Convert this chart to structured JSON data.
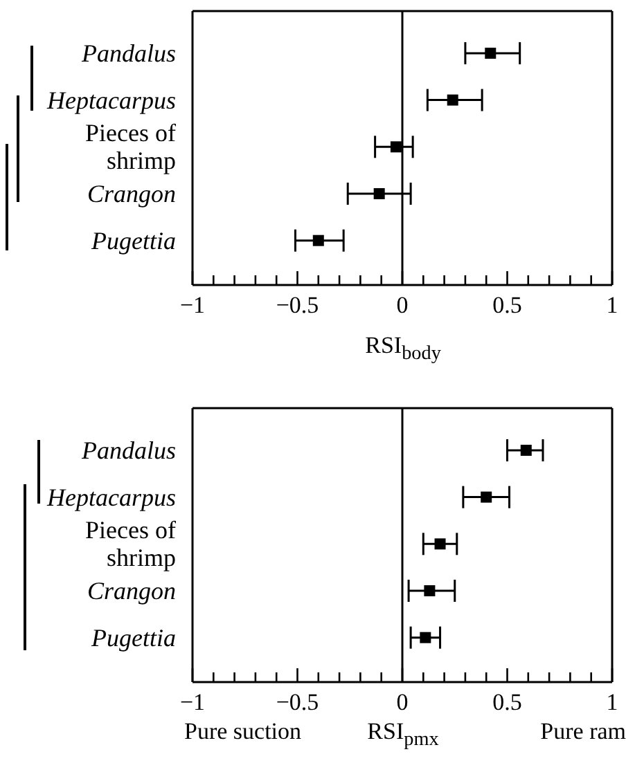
{
  "chart_data": [
    {
      "type": "scatter",
      "orientation": "horizontal",
      "categories": [
        "Pandalus",
        "Heptacarpus",
        "Pieces of shrimp",
        "Crangon",
        "Pugettia"
      ],
      "values": [
        0.42,
        0.24,
        -0.03,
        -0.11,
        -0.4
      ],
      "errors": [
        [
          0.3,
          0.56
        ],
        [
          0.12,
          0.38
        ],
        [
          -0.13,
          0.05
        ],
        [
          -0.26,
          0.04
        ],
        [
          -0.51,
          -0.28
        ]
      ],
      "color": "#000000",
      "marker": "square",
      "xlim": [
        -1,
        1
      ],
      "xticks": [
        {
          "value": -1,
          "label": "−1"
        },
        {
          "value": -0.9,
          "label": null
        },
        {
          "value": -0.8,
          "label": null
        },
        {
          "value": -0.7,
          "label": null
        },
        {
          "value": -0.6,
          "label": null
        },
        {
          "value": -0.5,
          "label": "−0.5"
        },
        {
          "value": -0.4,
          "label": null
        },
        {
          "value": -0.3,
          "label": null
        },
        {
          "value": -0.2,
          "label": null
        },
        {
          "value": -0.1,
          "label": null
        },
        0,
        {
          "value": 0.1,
          "label": null
        },
        {
          "value": 0.2,
          "label": null
        },
        {
          "value": 0.3,
          "label": null
        },
        {
          "value": 0.4,
          "label": null
        },
        0.5,
        {
          "value": 0.6,
          "label": null
        },
        {
          "value": 0.7,
          "label": null
        },
        {
          "value": 0.8,
          "label": null
        },
        {
          "value": 0.9,
          "label": null
        },
        1
      ],
      "xlabel": "RSI$_{body}$",
      "ref_lines": [
        {
          "axis": "x",
          "value": 0,
          "color": "#000000"
        }
      ]
    },
    {
      "type": "scatter",
      "orientation": "horizontal",
      "categories": [
        "Pandalus",
        "Heptacarpus",
        "Pieces of shrimp",
        "Crangon",
        "Pugettia"
      ],
      "values": [
        0.59,
        0.4,
        0.18,
        0.13,
        0.11
      ],
      "errors": [
        [
          0.5,
          0.67
        ],
        [
          0.29,
          0.51
        ],
        [
          0.1,
          0.26
        ],
        [
          0.03,
          0.25
        ],
        [
          0.04,
          0.18
        ]
      ],
      "color": "#000000",
      "marker": "square",
      "xlim": [
        -1,
        1
      ],
      "xticks": [
        {
          "value": -1,
          "label": "−1"
        },
        {
          "value": -0.9,
          "label": null
        },
        {
          "value": -0.8,
          "label": null
        },
        {
          "value": -0.7,
          "label": null
        },
        {
          "value": -0.6,
          "label": null
        },
        {
          "value": -0.5,
          "label": "−0.5"
        },
        {
          "value": -0.4,
          "label": null
        },
        {
          "value": -0.3,
          "label": null
        },
        {
          "value": -0.2,
          "label": null
        },
        {
          "value": -0.1,
          "label": null
        },
        0,
        {
          "value": 0.1,
          "label": null
        },
        {
          "value": 0.2,
          "label": null
        },
        {
          "value": 0.3,
          "label": null
        },
        {
          "value": 0.4,
          "label": null
        },
        0.5,
        {
          "value": 0.6,
          "label": null
        },
        {
          "value": 0.7,
          "label": null
        },
        {
          "value": 0.8,
          "label": null
        },
        {
          "value": 0.9,
          "label": null
        },
        1
      ],
      "xlabel": "RSI$_{pmx}$",
      "annotations": [
        "Pure suction",
        "Pure ram"
      ],
      "ref_lines": [
        {
          "axis": "x",
          "value": 0,
          "color": "#000000"
        }
      ]
    }
  ]
}
